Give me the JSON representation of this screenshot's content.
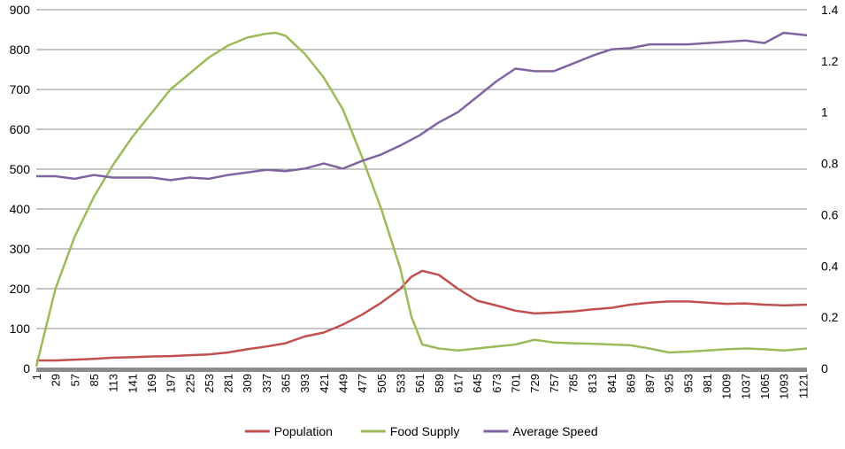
{
  "chart_data": {
    "type": "line",
    "x_ticks": [
      "1",
      "29",
      "57",
      "85",
      "113",
      "141",
      "169",
      "197",
      "225",
      "253",
      "281",
      "309",
      "337",
      "365",
      "393",
      "421",
      "449",
      "477",
      "505",
      "533",
      "561",
      "589",
      "617",
      "645",
      "673",
      "701",
      "729",
      "757",
      "785",
      "813",
      "841",
      "869",
      "897",
      "925",
      "953",
      "981",
      "1009",
      "1037",
      "1065",
      "1093",
      "1121"
    ],
    "xlim": [
      1,
      1127
    ],
    "y_left": {
      "ticks": [
        "0",
        "100",
        "200",
        "300",
        "400",
        "500",
        "600",
        "700",
        "800",
        "900"
      ],
      "lim": [
        0,
        900
      ]
    },
    "y_right": {
      "ticks": [
        "0",
        "0.2",
        "0.4",
        "0.6",
        "0.8",
        "1",
        "1.2",
        "1.4"
      ],
      "lim": [
        0,
        1.4
      ]
    },
    "grid": true,
    "legend_position": "bottom",
    "series": [
      {
        "name": "Population",
        "axis": "left",
        "color": "#C0504D",
        "points": [
          [
            1,
            20
          ],
          [
            29,
            20
          ],
          [
            57,
            22
          ],
          [
            85,
            24
          ],
          [
            113,
            27
          ],
          [
            141,
            28
          ],
          [
            169,
            30
          ],
          [
            197,
            31
          ],
          [
            225,
            33
          ],
          [
            253,
            35
          ],
          [
            281,
            40
          ],
          [
            309,
            48
          ],
          [
            337,
            55
          ],
          [
            365,
            63
          ],
          [
            393,
            80
          ],
          [
            421,
            90
          ],
          [
            449,
            110
          ],
          [
            477,
            135
          ],
          [
            505,
            165
          ],
          [
            533,
            200
          ],
          [
            549,
            230
          ],
          [
            565,
            245
          ],
          [
            589,
            235
          ],
          [
            617,
            200
          ],
          [
            645,
            170
          ],
          [
            673,
            158
          ],
          [
            701,
            145
          ],
          [
            729,
            138
          ],
          [
            757,
            140
          ],
          [
            785,
            143
          ],
          [
            813,
            148
          ],
          [
            841,
            152
          ],
          [
            869,
            160
          ],
          [
            897,
            165
          ],
          [
            925,
            168
          ],
          [
            953,
            168
          ],
          [
            981,
            165
          ],
          [
            1009,
            162
          ],
          [
            1037,
            163
          ],
          [
            1065,
            160
          ],
          [
            1093,
            158
          ],
          [
            1127,
            160
          ]
        ]
      },
      {
        "name": "Food Supply",
        "axis": "left",
        "color": "#9BBB59",
        "points": [
          [
            1,
            5
          ],
          [
            29,
            200
          ],
          [
            57,
            330
          ],
          [
            85,
            430
          ],
          [
            113,
            510
          ],
          [
            141,
            580
          ],
          [
            169,
            640
          ],
          [
            197,
            700
          ],
          [
            225,
            740
          ],
          [
            253,
            780
          ],
          [
            281,
            810
          ],
          [
            309,
            830
          ],
          [
            337,
            840
          ],
          [
            351,
            842
          ],
          [
            365,
            835
          ],
          [
            393,
            790
          ],
          [
            421,
            730
          ],
          [
            449,
            650
          ],
          [
            477,
            530
          ],
          [
            505,
            400
          ],
          [
            533,
            250
          ],
          [
            549,
            130
          ],
          [
            565,
            60
          ],
          [
            589,
            50
          ],
          [
            617,
            45
          ],
          [
            645,
            50
          ],
          [
            673,
            55
          ],
          [
            701,
            60
          ],
          [
            729,
            72
          ],
          [
            757,
            65
          ],
          [
            785,
            63
          ],
          [
            813,
            62
          ],
          [
            841,
            60
          ],
          [
            869,
            58
          ],
          [
            897,
            50
          ],
          [
            925,
            40
          ],
          [
            953,
            42
          ],
          [
            981,
            45
          ],
          [
            1009,
            48
          ],
          [
            1037,
            50
          ],
          [
            1065,
            48
          ],
          [
            1093,
            45
          ],
          [
            1127,
            50
          ]
        ]
      },
      {
        "name": "Average Speed",
        "axis": "right",
        "color": "#8064A2",
        "points": [
          [
            1,
            0.75
          ],
          [
            29,
            0.75
          ],
          [
            57,
            0.74
          ],
          [
            85,
            0.755
          ],
          [
            113,
            0.745
          ],
          [
            141,
            0.745
          ],
          [
            169,
            0.745
          ],
          [
            197,
            0.735
          ],
          [
            225,
            0.745
          ],
          [
            253,
            0.74
          ],
          [
            281,
            0.755
          ],
          [
            309,
            0.765
          ],
          [
            337,
            0.775
          ],
          [
            365,
            0.77
          ],
          [
            393,
            0.78
          ],
          [
            421,
            0.8
          ],
          [
            449,
            0.78
          ],
          [
            477,
            0.81
          ],
          [
            505,
            0.835
          ],
          [
            533,
            0.87
          ],
          [
            561,
            0.91
          ],
          [
            589,
            0.96
          ],
          [
            617,
            1.0
          ],
          [
            645,
            1.06
          ],
          [
            673,
            1.12
          ],
          [
            701,
            1.17
          ],
          [
            729,
            1.16
          ],
          [
            757,
            1.16
          ],
          [
            785,
            1.19
          ],
          [
            813,
            1.22
          ],
          [
            841,
            1.245
          ],
          [
            869,
            1.25
          ],
          [
            897,
            1.265
          ],
          [
            925,
            1.265
          ],
          [
            953,
            1.265
          ],
          [
            981,
            1.27
          ],
          [
            1009,
            1.275
          ],
          [
            1037,
            1.28
          ],
          [
            1065,
            1.27
          ],
          [
            1093,
            1.31
          ],
          [
            1127,
            1.3
          ]
        ]
      }
    ]
  }
}
